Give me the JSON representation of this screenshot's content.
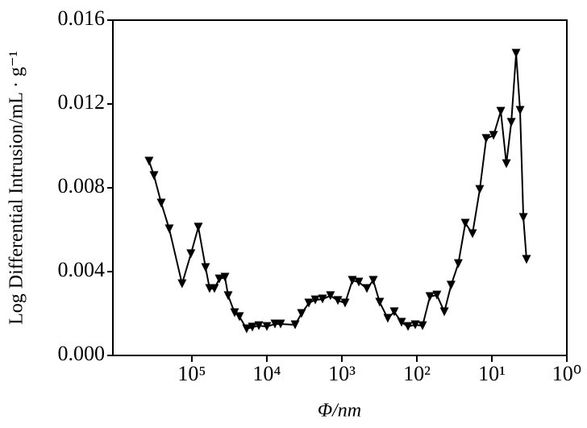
{
  "chart_data": {
    "type": "line",
    "y_label": "Log Differential Intrusion/mL · g⁻¹",
    "x_label": "Φ/nm",
    "x_log": true,
    "x_reversed": true,
    "color": "#000000",
    "marker": "triangle-down",
    "xlim": [
      1130000,
      1
    ],
    "xticks": [
      {
        "value": 100000,
        "label": "10⁵"
      },
      {
        "value": 10000,
        "label": "10⁴"
      },
      {
        "value": 1000,
        "label": "10³"
      },
      {
        "value": 100,
        "label": "10²"
      },
      {
        "value": 10,
        "label": "10¹"
      },
      {
        "value": 1,
        "label": "10⁰"
      }
    ],
    "ylim": [
      0,
      0.016
    ],
    "yticks": [
      {
        "value": 0,
        "label": "0.000"
      },
      0.004,
      0.008,
      0.012,
      0.016
    ],
    "x": [
      372000,
      320000,
      256000,
      200000,
      135000,
      103000,
      82000,
      65600,
      58000,
      50000,
      43100,
      36200,
      32800,
      26900,
      23200,
      18600,
      15600,
      12800,
      10000,
      7800,
      6560,
      4200,
      3450,
      2760,
      2260,
      1810,
      1420,
      1130,
      906,
      725,
      594,
      464,
      381,
      313,
      244,
      200,
      160,
      131,
      105,
      84,
      67,
      54,
      43,
      35,
      28,
      22.6,
      18.1,
      14.5,
      11.9,
      9.5,
      7.6,
      6.4,
      5.5,
      4.75,
      4.2,
      3.8,
      3.45
    ],
    "values": [
      0.00927,
      0.00858,
      0.00727,
      0.00604,
      0.00342,
      0.00485,
      0.00612,
      0.00419,
      0.00319,
      0.00319,
      0.00365,
      0.00373,
      0.00285,
      0.00204,
      0.00185,
      0.00127,
      0.00135,
      0.00142,
      0.00138,
      0.0015,
      0.0015,
      0.00146,
      0.002,
      0.0025,
      0.00265,
      0.00269,
      0.00285,
      0.00262,
      0.0025,
      0.00358,
      0.0035,
      0.00319,
      0.00358,
      0.00254,
      0.00177,
      0.00208,
      0.00158,
      0.00138,
      0.00146,
      0.00142,
      0.00281,
      0.00288,
      0.00208,
      0.00335,
      0.00438,
      0.00631,
      0.00581,
      0.00792,
      0.01035,
      0.0105,
      0.01165,
      0.00915,
      0.01112,
      0.01442,
      0.01169,
      0.00658,
      0.00458
    ]
  }
}
